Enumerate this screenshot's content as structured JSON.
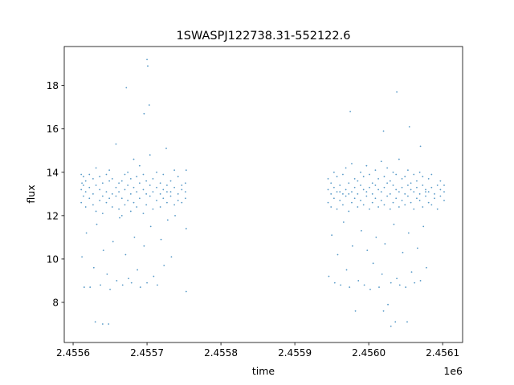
{
  "chart_data": {
    "type": "scatter",
    "title": "1SWASPJ122738.31-552122.6",
    "xlabel": "time",
    "ylabel": "flux",
    "x_offset_label": "1e6",
    "time_offset": 2455600,
    "xlim": [
      2455588,
      2456127
    ],
    "ylim": [
      6.15,
      19.8
    ],
    "xticks": [
      2455600,
      2455700,
      2455800,
      2455900,
      2456000,
      2456100
    ],
    "xtick_labels": [
      "2.4556",
      "2.4557",
      "2.4558",
      "2.4559",
      "2.4560",
      "2.4561"
    ],
    "yticks": [
      8,
      10,
      12,
      14,
      16,
      18
    ],
    "ytick_labels": [
      "8",
      "10",
      "12",
      "14",
      "16",
      "18"
    ],
    "grid": false,
    "color": "#1f77b4",
    "points_note_units": "t = time - time_offset (days), f = flux",
    "points": [
      [
        11,
        13.9
      ],
      [
        11,
        13.2
      ],
      [
        11,
        12.6
      ],
      [
        12,
        13.5
      ],
      [
        12,
        10.1
      ],
      [
        14,
        13.4
      ],
      [
        14,
        12.9
      ],
      [
        14,
        13.8
      ],
      [
        15,
        8.7
      ],
      [
        17,
        13.1
      ],
      [
        17,
        12.4
      ],
      [
        17,
        13.6
      ],
      [
        18,
        11.2
      ],
      [
        22,
        13.3
      ],
      [
        22,
        12.8
      ],
      [
        22,
        13.9
      ],
      [
        23,
        8.7
      ],
      [
        27,
        13.0
      ],
      [
        27,
        13.7
      ],
      [
        27,
        12.5
      ],
      [
        28,
        9.6
      ],
      [
        31,
        13.4
      ],
      [
        31,
        12.2
      ],
      [
        31,
        14.2
      ],
      [
        32,
        11.6
      ],
      [
        36,
        13.2
      ],
      [
        36,
        12.7
      ],
      [
        36,
        13.8
      ],
      [
        37,
        8.8
      ],
      [
        40,
        12.9
      ],
      [
        40,
        13.5
      ],
      [
        40,
        12.1
      ],
      [
        41,
        10.4
      ],
      [
        45,
        13.1
      ],
      [
        45,
        13.9
      ],
      [
        45,
        12.6
      ],
      [
        46,
        9.3
      ],
      [
        49,
        13.6
      ],
      [
        49,
        12.8
      ],
      [
        49,
        14.1
      ],
      [
        50,
        8.6
      ],
      [
        53,
        13.0
      ],
      [
        53,
        12.4
      ],
      [
        53,
        13.7
      ],
      [
        54,
        10.8
      ],
      [
        58,
        13.3
      ],
      [
        58,
        12.9
      ],
      [
        58,
        15.3
      ],
      [
        59,
        9.0
      ],
      [
        62,
        13.5
      ],
      [
        62,
        12.3
      ],
      [
        62,
        13.1
      ],
      [
        63,
        11.9
      ],
      [
        66,
        12.8
      ],
      [
        66,
        13.6
      ],
      [
        66,
        12.0
      ],
      [
        67,
        8.8
      ],
      [
        70,
        13.2
      ],
      [
        70,
        13.9
      ],
      [
        70,
        12.5
      ],
      [
        71,
        10.2
      ],
      [
        74,
        13.4
      ],
      [
        74,
        12.7
      ],
      [
        74,
        14.0
      ],
      [
        75,
        9.1
      ],
      [
        78,
        13.0
      ],
      [
        78,
        12.2
      ],
      [
        78,
        13.7
      ],
      [
        79,
        8.9
      ],
      [
        82,
        13.3
      ],
      [
        82,
        14.6
      ],
      [
        82,
        12.6
      ],
      [
        83,
        11.0
      ],
      [
        86,
        13.1
      ],
      [
        86,
        12.4
      ],
      [
        86,
        13.8
      ],
      [
        87,
        9.5
      ],
      [
        90,
        13.5
      ],
      [
        90,
        12.8
      ],
      [
        90,
        14.3
      ],
      [
        91,
        8.7
      ],
      [
        95,
        13.2
      ],
      [
        95,
        12.1
      ],
      [
        95,
        13.9
      ],
      [
        96,
        10.6
      ],
      [
        99,
        13.0
      ],
      [
        99,
        12.5
      ],
      [
        99,
        13.6
      ],
      [
        100,
        8.9
      ],
      [
        104,
        13.4
      ],
      [
        104,
        12.9
      ],
      [
        104,
        14.8
      ],
      [
        105,
        11.5
      ],
      [
        108,
        13.1
      ],
      [
        108,
        12.3
      ],
      [
        108,
        13.7
      ],
      [
        109,
        9.2
      ],
      [
        113,
        13.3
      ],
      [
        113,
        12.7
      ],
      [
        113,
        14.0
      ],
      [
        114,
        8.8
      ],
      [
        118,
        13.0
      ],
      [
        118,
        12.4
      ],
      [
        118,
        13.5
      ],
      [
        119,
        10.9
      ],
      [
        122,
        13.2
      ],
      [
        122,
        12.8
      ],
      [
        122,
        13.9
      ],
      [
        123,
        9.7
      ],
      [
        127,
        13.4
      ],
      [
        127,
        12.6
      ],
      [
        127,
        13.1
      ],
      [
        128,
        11.8
      ],
      [
        132,
        13.1
      ],
      [
        132,
        12.9
      ],
      [
        132,
        13.6
      ],
      [
        133,
        10.1
      ],
      [
        137,
        13.3
      ],
      [
        137,
        12.5
      ],
      [
        137,
        14.1
      ],
      [
        138,
        12.0
      ],
      [
        142,
        13.0
      ],
      [
        142,
        12.7
      ],
      [
        142,
        13.8
      ],
      [
        147,
        13.2
      ],
      [
        147,
        12.6
      ],
      [
        147,
        13.4
      ],
      [
        152,
        13.5
      ],
      [
        152,
        12.8
      ],
      [
        152,
        13.1
      ],
      [
        153,
        8.5
      ],
      [
        153,
        11.4
      ],
      [
        153,
        14.1
      ],
      [
        72,
        17.9
      ],
      [
        96,
        16.7
      ],
      [
        100,
        19.2
      ],
      [
        101,
        18.9
      ],
      [
        103,
        17.1
      ],
      [
        126,
        15.1
      ],
      [
        30,
        7.1
      ],
      [
        40,
        7.0
      ],
      [
        48,
        7.0
      ],
      [
        345,
        13.2
      ],
      [
        345,
        12.6
      ],
      [
        345,
        13.7
      ],
      [
        346,
        9.2
      ],
      [
        349,
        13.0
      ],
      [
        349,
        12.4
      ],
      [
        349,
        13.5
      ],
      [
        350,
        11.1
      ],
      [
        353,
        13.3
      ],
      [
        353,
        12.8
      ],
      [
        353,
        14.0
      ],
      [
        354,
        8.9
      ],
      [
        357,
        13.1
      ],
      [
        357,
        12.3
      ],
      [
        357,
        13.8
      ],
      [
        358,
        10.2
      ],
      [
        361,
        13.4
      ],
      [
        361,
        12.7
      ],
      [
        361,
        13.1
      ],
      [
        362,
        8.8
      ],
      [
        365,
        13.0
      ],
      [
        365,
        12.5
      ],
      [
        365,
        13.9
      ],
      [
        366,
        11.7
      ],
      [
        369,
        13.2
      ],
      [
        369,
        12.9
      ],
      [
        369,
        14.2
      ],
      [
        370,
        9.5
      ],
      [
        373,
        13.5
      ],
      [
        373,
        12.2
      ],
      [
        373,
        13.0
      ],
      [
        374,
        8.7
      ],
      [
        377,
        13.1
      ],
      [
        377,
        12.6
      ],
      [
        377,
        14.4
      ],
      [
        378,
        10.6
      ],
      [
        381,
        13.3
      ],
      [
        381,
        12.8
      ],
      [
        381,
        13.7
      ],
      [
        382,
        7.6
      ],
      [
        385,
        13.0
      ],
      [
        385,
        12.4
      ],
      [
        385,
        13.6
      ],
      [
        386,
        9.0
      ],
      [
        389,
        13.4
      ],
      [
        389,
        12.7
      ],
      [
        389,
        14.0
      ],
      [
        390,
        11.3
      ],
      [
        393,
        13.2
      ],
      [
        393,
        12.5
      ],
      [
        393,
        13.8
      ],
      [
        394,
        8.8
      ],
      [
        397,
        13.1
      ],
      [
        397,
        12.9
      ],
      [
        397,
        14.3
      ],
      [
        398,
        10.4
      ],
      [
        401,
        13.3
      ],
      [
        401,
        12.3
      ],
      [
        401,
        13.9
      ],
      [
        402,
        8.6
      ],
      [
        405,
        13.0
      ],
      [
        405,
        12.6
      ],
      [
        405,
        13.5
      ],
      [
        406,
        9.8
      ],
      [
        409,
        13.4
      ],
      [
        409,
        12.8
      ],
      [
        409,
        14.1
      ],
      [
        410,
        11.0
      ],
      [
        413,
        13.2
      ],
      [
        413,
        12.4
      ],
      [
        413,
        13.7
      ],
      [
        414,
        8.7
      ],
      [
        417,
        13.1
      ],
      [
        417,
        12.7
      ],
      [
        417,
        14.5
      ],
      [
        418,
        9.3
      ],
      [
        421,
        13.3
      ],
      [
        421,
        12.5
      ],
      [
        421,
        13.8
      ],
      [
        422,
        10.7
      ],
      [
        425,
        13.5
      ],
      [
        425,
        12.9
      ],
      [
        425,
        14.2
      ],
      [
        426,
        7.9
      ],
      [
        429,
        13.0
      ],
      [
        429,
        12.3
      ],
      [
        429,
        13.6
      ],
      [
        430,
        8.9
      ],
      [
        433,
        13.4
      ],
      [
        433,
        12.6
      ],
      [
        433,
        14.0
      ],
      [
        434,
        11.6
      ],
      [
        437,
        13.2
      ],
      [
        437,
        12.8
      ],
      [
        437,
        13.9
      ],
      [
        438,
        9.1
      ],
      [
        441,
        13.1
      ],
      [
        441,
        12.4
      ],
      [
        441,
        14.6
      ],
      [
        442,
        8.8
      ],
      [
        445,
        13.3
      ],
      [
        445,
        12.7
      ],
      [
        445,
        13.7
      ],
      [
        446,
        10.3
      ],
      [
        449,
        13.0
      ],
      [
        449,
        12.5
      ],
      [
        449,
        13.8
      ],
      [
        450,
        8.7
      ],
      [
        453,
        13.4
      ],
      [
        453,
        12.9
      ],
      [
        453,
        14.1
      ],
      [
        454,
        11.2
      ],
      [
        457,
        13.2
      ],
      [
        457,
        12.6
      ],
      [
        457,
        13.5
      ],
      [
        458,
        9.4
      ],
      [
        461,
        13.1
      ],
      [
        461,
        12.3
      ],
      [
        461,
        13.9
      ],
      [
        462,
        8.9
      ],
      [
        465,
        13.3
      ],
      [
        465,
        12.8
      ],
      [
        465,
        13.6
      ],
      [
        466,
        10.5
      ],
      [
        469,
        13.0
      ],
      [
        469,
        12.7
      ],
      [
        469,
        14.0
      ],
      [
        470,
        9.0
      ],
      [
        473,
        13.4
      ],
      [
        473,
        12.4
      ],
      [
        473,
        13.8
      ],
      [
        474,
        11.5
      ],
      [
        477,
        13.2
      ],
      [
        477,
        12.9
      ],
      [
        477,
        13.1
      ],
      [
        478,
        9.6
      ],
      [
        481,
        13.1
      ],
      [
        481,
        12.6
      ],
      [
        481,
        13.7
      ],
      [
        485,
        13.3
      ],
      [
        485,
        12.5
      ],
      [
        485,
        13.9
      ],
      [
        489,
        13.0
      ],
      [
        489,
        12.8
      ],
      [
        493,
        13.4
      ],
      [
        493,
        12.3
      ],
      [
        497,
        13.2
      ],
      [
        497,
        12.9
      ],
      [
        497,
        13.6
      ],
      [
        502,
        13.1
      ],
      [
        502,
        12.7
      ],
      [
        502,
        13.4
      ],
      [
        375,
        16.8
      ],
      [
        420,
        15.9
      ],
      [
        438,
        17.7
      ],
      [
        455,
        16.1
      ],
      [
        470,
        15.2
      ],
      [
        430,
        6.9
      ],
      [
        436,
        7.1
      ],
      [
        452,
        7.1
      ],
      [
        420,
        7.6
      ]
    ]
  }
}
